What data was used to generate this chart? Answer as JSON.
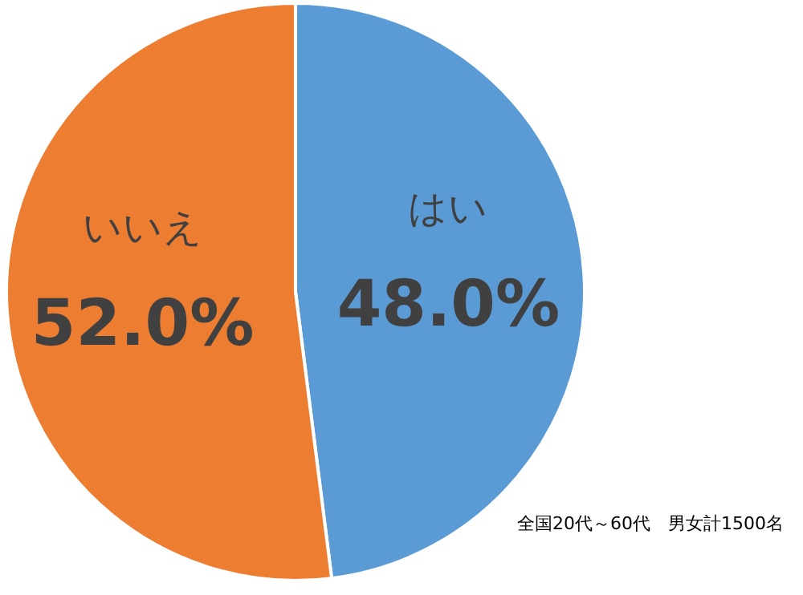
{
  "chart_data": {
    "type": "pie",
    "categories": [
      "はい",
      "いいえ"
    ],
    "values": [
      48.0,
      52.0
    ],
    "value_labels": [
      "48.0%",
      "52.0%"
    ],
    "colors": [
      "#5b9bd5",
      "#ed7d31"
    ],
    "annotations": [
      "全国20代～60代　男女計1500名"
    ]
  }
}
